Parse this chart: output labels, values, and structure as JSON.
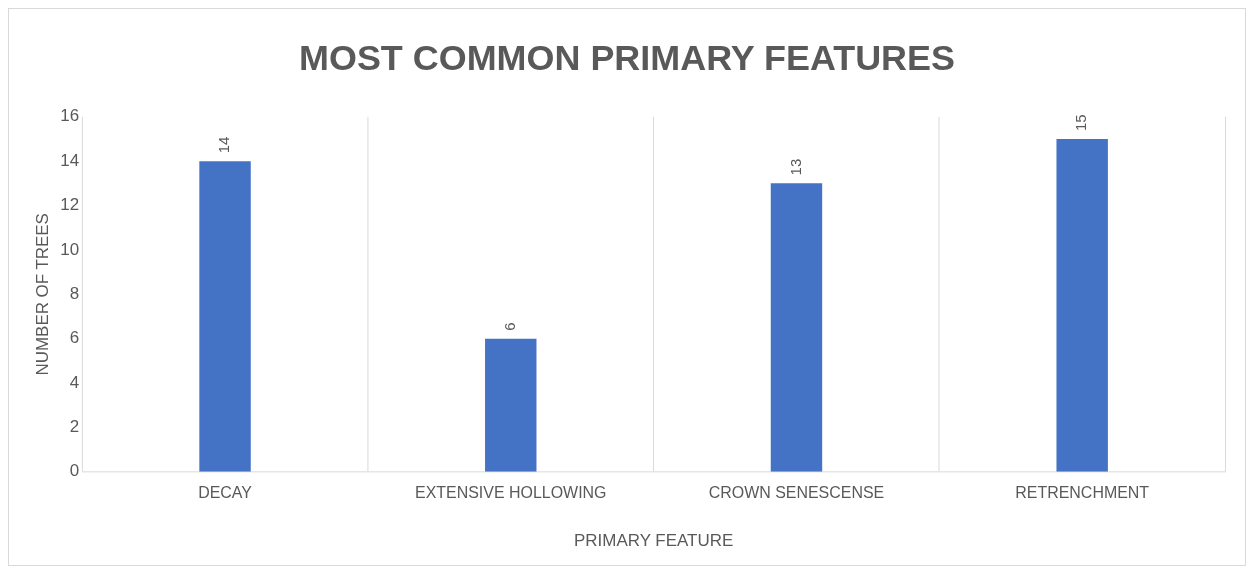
{
  "chart_data": {
    "type": "bar",
    "title": "MOST COMMON PRIMARY FEATURES",
    "xlabel": "PRIMARY FEATURE",
    "ylabel": "NUMBER OF TREES",
    "categories": [
      "DECAY",
      "EXTENSIVE HOLLOWING",
      "CROWN SENESCENSE",
      "RETRENCHMENT"
    ],
    "values": [
      14,
      6,
      13,
      15
    ],
    "color": "#4472c4",
    "ylim": [
      0,
      16
    ],
    "yticks": [
      0,
      2,
      4,
      6,
      8,
      10,
      12,
      14,
      16
    ],
    "grid": "x",
    "data_labels": true,
    "legend": false
  }
}
